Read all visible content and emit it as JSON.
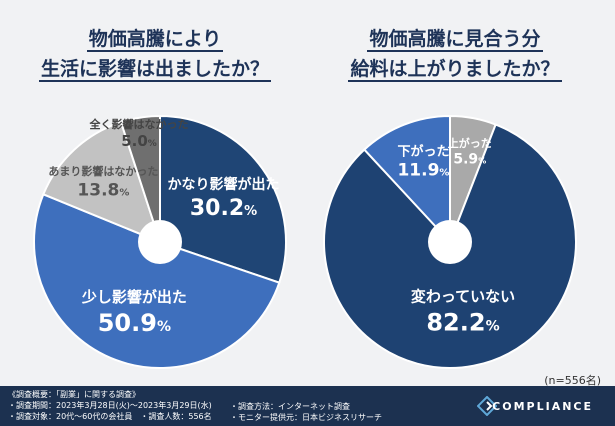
{
  "chart_data": [
    {
      "type": "pie",
      "title_lines": [
        "物価高騰により",
        "生活に影響は出ましたか？"
      ],
      "slices": [
        {
          "label": "かなり影響が出た",
          "value": 30.2,
          "color": "#1f4575"
        },
        {
          "label": "少し影響が出た",
          "value": 50.9,
          "color": "#3e6fbd"
        },
        {
          "label": "あまり影響はなかった",
          "value": 13.8,
          "color": "#c2c2c2"
        },
        {
          "label": "全く影響はなかった",
          "value": 5.0,
          "color": "#6f6f6f"
        }
      ]
    },
    {
      "type": "pie",
      "title_lines": [
        "物価高騰に見合う分",
        "給料は上がりましたか？"
      ],
      "slices": [
        {
          "label": "上がった",
          "value": 5.9,
          "color": "#a9a9a9"
        },
        {
          "label": "変わっていない",
          "value": 82.2,
          "color": "#1e4272"
        },
        {
          "label": "下がった",
          "value": 11.9,
          "color": "#3e6fbd"
        }
      ]
    }
  ],
  "sample_size": "(n=556名)",
  "footer": {
    "lines_left": [
      "《調査概要：「副業」に関する調査》",
      "・調査期間：2023年3月28日(火)～2023年3月29日(水)",
      "・調査対象：20代～60代の会社員　・調査人数：556名"
    ],
    "lines_right": [
      "・調査方法：インターネット調査",
      "・モニター提供元：日本ビジネスリサーチ"
    ],
    "brand": "COMPLIANCE"
  }
}
